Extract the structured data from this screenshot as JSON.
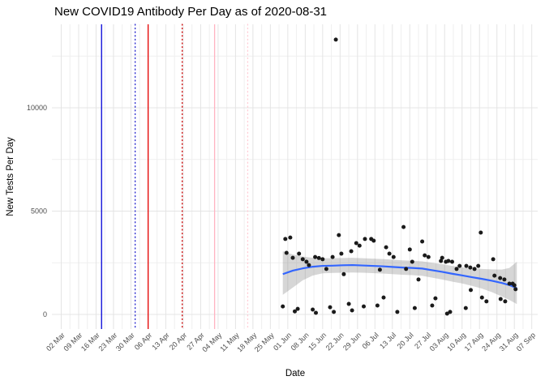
{
  "title": "New COVID19 Antibody Per Day as of 2020-08-31",
  "x_axis_label": "Date",
  "y_axis_label": "New Tests Per Day",
  "chart_data": {
    "type": "scatter",
    "title": "New COVID19 Antibody Per Day as of 2020-08-31",
    "xlabel": "Date",
    "ylabel": "New Tests Per Day",
    "x_epoch": "2020-03-02",
    "x_unit": "days since 2020-03-02",
    "x_tick_interval_days": 7,
    "x_tick_labels": [
      "02 Mar",
      "09 Mar",
      "16 Mar",
      "23 Mar",
      "30 Mar",
      "06 Apr",
      "13 Apr",
      "20 Apr",
      "27 Apr",
      "04 May",
      "11 May",
      "18 May",
      "25 May",
      "01 Jun",
      "08 Jun",
      "15 Jun",
      "22 Jun",
      "29 Jun",
      "06 Jul",
      "13 Jul",
      "20 Jul",
      "27 Jul",
      "03 Aug",
      "10 Aug",
      "17 Aug",
      "24 Aug",
      "31 Aug",
      "07 Sep"
    ],
    "y_tick_values": [
      0,
      5000,
      10000
    ],
    "y_minor_values": [
      2500,
      7500,
      12500
    ],
    "ylim": [
      0,
      13300
    ],
    "xlim_days": [
      0,
      189
    ],
    "grid": true,
    "legend": "none",
    "points_color": "#1a1a1a",
    "points": [
      [
        89,
        390
      ],
      [
        90,
        3650
      ],
      [
        90.5,
        2980
      ],
      [
        92,
        3720
      ],
      [
        93,
        2740
      ],
      [
        93.8,
        150
      ],
      [
        95,
        270
      ],
      [
        95.5,
        2940
      ],
      [
        97,
        2670
      ],
      [
        98.5,
        2550
      ],
      [
        99.5,
        2390
      ],
      [
        101,
        235
      ],
      [
        102,
        2780
      ],
      [
        102.3,
        80
      ],
      [
        103.5,
        2730
      ],
      [
        105,
        2670
      ],
      [
        106.5,
        2200
      ],
      [
        108,
        350
      ],
      [
        109,
        2780
      ],
      [
        109.5,
        120
      ],
      [
        110.3,
        13300
      ],
      [
        111.5,
        3840
      ],
      [
        112.5,
        2940
      ],
      [
        113.5,
        1950
      ],
      [
        115.5,
        510
      ],
      [
        116.5,
        3060
      ],
      [
        116.8,
        196
      ],
      [
        118.5,
        3450
      ],
      [
        119.8,
        3330
      ],
      [
        121.5,
        390
      ],
      [
        122,
        3650
      ],
      [
        124.5,
        3650
      ],
      [
        125.5,
        3570
      ],
      [
        127,
        430
      ],
      [
        128,
        2160
      ],
      [
        129.5,
        820
      ],
      [
        130.5,
        3250
      ],
      [
        131.8,
        2940
      ],
      [
        133.5,
        2780
      ],
      [
        135,
        120
      ],
      [
        137.5,
        4230
      ],
      [
        138.5,
        2200
      ],
      [
        140,
        3140
      ],
      [
        141,
        2550
      ],
      [
        142,
        310
      ],
      [
        143.5,
        1690
      ],
      [
        145,
        3530
      ],
      [
        146,
        2860
      ],
      [
        147.5,
        2780
      ],
      [
        149,
        430
      ],
      [
        150.3,
        780
      ],
      [
        152.5,
        2590
      ],
      [
        153,
        2740
      ],
      [
        154.5,
        2550
      ],
      [
        155,
        40
      ],
      [
        155.5,
        2590
      ],
      [
        156.2,
        120
      ],
      [
        157,
        2550
      ],
      [
        158.8,
        2200
      ],
      [
        160,
        2350
      ],
      [
        162.5,
        310
      ],
      [
        162.7,
        2350
      ],
      [
        164.3,
        2270
      ],
      [
        164.5,
        1180
      ],
      [
        166,
        2200
      ],
      [
        167.5,
        2350
      ],
      [
        168.5,
        3960
      ],
      [
        169,
        820
      ],
      [
        170.8,
        630
      ],
      [
        173.5,
        2670
      ],
      [
        174,
        1880
      ],
      [
        176.3,
        1760
      ],
      [
        176.5,
        745
      ],
      [
        178,
        1690
      ],
      [
        178.3,
        630
      ],
      [
        180,
        1490
      ],
      [
        181.3,
        1490
      ],
      [
        182,
        1410
      ],
      [
        182.5,
        1220
      ]
    ],
    "smooth_line": {
      "color": "#3366FF",
      "points": [
        [
          89,
          1950
        ],
        [
          93,
          2120
        ],
        [
          97,
          2230
        ],
        [
          101,
          2310
        ],
        [
          105,
          2350
        ],
        [
          109,
          2360
        ],
        [
          113,
          2380
        ],
        [
          117,
          2390
        ],
        [
          121,
          2370
        ],
        [
          125,
          2350
        ],
        [
          129,
          2330
        ],
        [
          133,
          2300
        ],
        [
          137,
          2270
        ],
        [
          141,
          2250
        ],
        [
          145,
          2220
        ],
        [
          149,
          2140
        ],
        [
          153,
          2060
        ],
        [
          157,
          1970
        ],
        [
          161,
          1890
        ],
        [
          165,
          1800
        ],
        [
          169,
          1720
        ],
        [
          173,
          1630
        ],
        [
          177,
          1520
        ],
        [
          180,
          1420
        ],
        [
          183,
          1270
        ]
      ]
    },
    "ci_band": {
      "fill": "#7f7f7f",
      "opacity": 0.32,
      "days": [
        89,
        93,
        97,
        101,
        105,
        109,
        113,
        117,
        121,
        125,
        129,
        133,
        137,
        141,
        145,
        149,
        153,
        157,
        161,
        165,
        169,
        173,
        177,
        180,
        183
      ],
      "upper": [
        3060,
        2900,
        2800,
        2740,
        2720,
        2720,
        2730,
        2740,
        2720,
        2700,
        2680,
        2650,
        2620,
        2600,
        2570,
        2500,
        2430,
        2350,
        2280,
        2230,
        2200,
        2180,
        2170,
        2250,
        2550
      ],
      "lower": [
        950,
        1300,
        1650,
        1880,
        1990,
        2010,
        2020,
        2030,
        2020,
        2000,
        1980,
        1950,
        1920,
        1900,
        1870,
        1780,
        1690,
        1590,
        1500,
        1380,
        1250,
        1080,
        870,
        700,
        500
      ]
    },
    "vlines": [
      {
        "day": 16.2,
        "date_est": "2020-03-18",
        "color": "#0000D8",
        "style": "solid"
      },
      {
        "day": 29.7,
        "date_est": "2020-04-01",
        "color": "#2222CC",
        "style": "dotted"
      },
      {
        "day": 34.9,
        "date_est": "2020-04-06",
        "color": "#E60000",
        "style": "solid"
      },
      {
        "day": 48.6,
        "date_est": "2020-04-20",
        "color": "#CC0000",
        "style": "dotted"
      },
      {
        "day": 61.6,
        "date_est": "2020-05-03",
        "color": "#FFB3C1",
        "style": "solid"
      },
      {
        "day": 74.9,
        "date_est": "2020-05-17",
        "color": "#FFCCD5",
        "style": "dotted"
      }
    ],
    "colors": {
      "grid_major": "#E4E4E4",
      "grid_minor": "#EFEFEF",
      "tick_label": "#4D4D4D",
      "title_text": "#000000"
    }
  }
}
